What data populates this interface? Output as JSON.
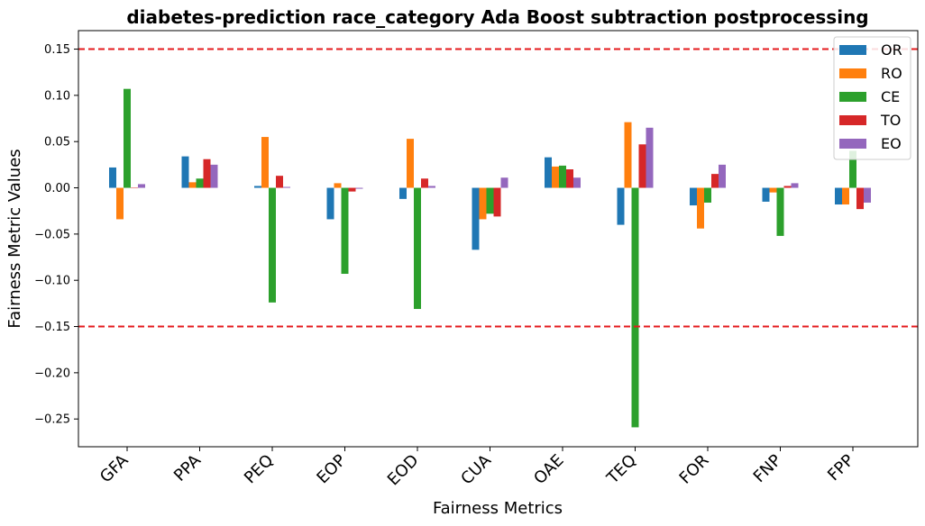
{
  "chart_data": {
    "type": "bar",
    "title": "diabetes-prediction race_category Ada Boost subtraction postprocessing",
    "xlabel": "Fairness Metrics",
    "ylabel": "Fairness Metric Values",
    "ylim": [
      -0.28,
      0.17
    ],
    "yticks": [
      -0.25,
      -0.2,
      -0.15,
      -0.1,
      -0.05,
      0.0,
      0.05,
      0.1,
      0.15
    ],
    "ytick_labels": [
      "−0.25",
      "−0.20",
      "−0.15",
      "−0.10",
      "−0.05",
      "0.00",
      "0.05",
      "0.10",
      "0.15"
    ],
    "categories": [
      "GFA",
      "PPA",
      "PEQ",
      "EOP",
      "EOD",
      "CUA",
      "OAE",
      "TEQ",
      "FOR",
      "FNP",
      "FPP"
    ],
    "reference_lines": [
      0.15,
      -0.15
    ],
    "reference_line_color": "#e41a1c",
    "legend_position": "top-right",
    "grid": false,
    "series": [
      {
        "name": "OR",
        "color": "#1f77b4",
        "values": [
          0.022,
          0.034,
          0.002,
          -0.034,
          -0.012,
          -0.067,
          0.033,
          -0.04,
          -0.019,
          -0.015,
          -0.018
        ]
      },
      {
        "name": "RO",
        "color": "#ff7f0e",
        "values": [
          -0.034,
          0.006,
          0.055,
          0.005,
          0.053,
          -0.034,
          0.023,
          0.071,
          -0.044,
          -0.005,
          -0.018
        ]
      },
      {
        "name": "CE",
        "color": "#2ca02c",
        "values": [
          0.107,
          0.01,
          -0.124,
          -0.093,
          -0.131,
          -0.028,
          0.024,
          -0.259,
          -0.016,
          -0.052,
          0.04
        ]
      },
      {
        "name": "TO",
        "color": "#d62728",
        "values": [
          0.0,
          0.031,
          0.013,
          -0.004,
          0.01,
          -0.031,
          0.02,
          0.047,
          0.015,
          0.002,
          -0.023
        ]
      },
      {
        "name": "EO",
        "color": "#9467bd",
        "values": [
          0.004,
          0.025,
          0.001,
          -0.001,
          0.002,
          0.011,
          0.011,
          0.065,
          0.025,
          0.005,
          -0.016
        ]
      }
    ]
  }
}
